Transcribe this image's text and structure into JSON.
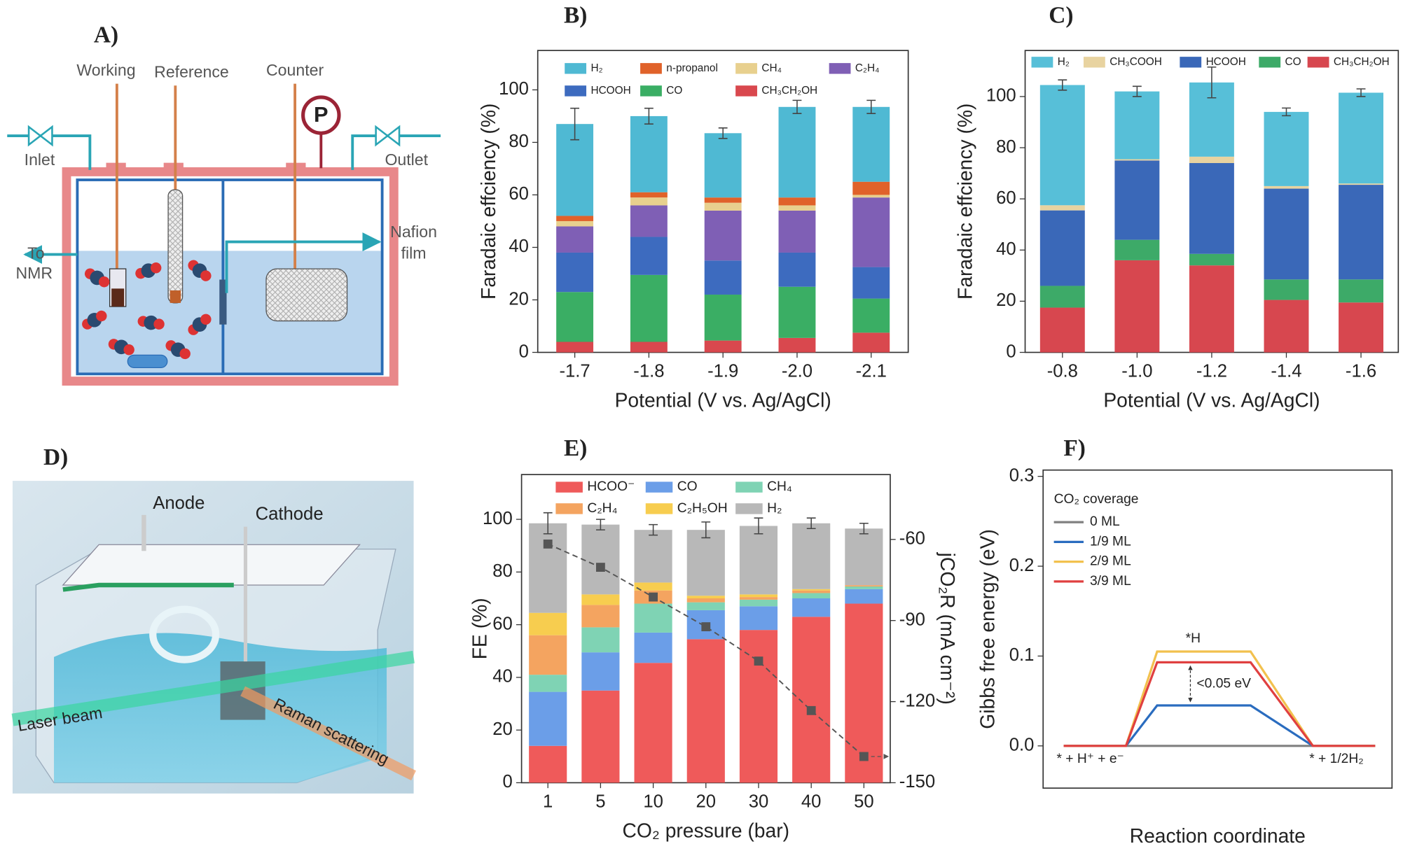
{
  "diagrams": {
    "A": {
      "panel_label": "A)",
      "working": "Working",
      "reference": "Reference",
      "counter": "Counter",
      "pressure": "P",
      "inlet": "Inlet",
      "outlet": "Outlet",
      "to_nmr": [
        "To",
        "NMR"
      ],
      "nafion": [
        "Nafion",
        "film"
      ]
    },
    "D": {
      "panel_label": "D)",
      "anode": "Anode",
      "cathode": "Cathode",
      "laser": "Laser beam",
      "raman": "Raman scattering"
    }
  },
  "chart_data": [
    {
      "type": "bar",
      "stacked": true,
      "panel_label": "B)",
      "xlabel": "Potential (V vs. Ag/AgCl)",
      "ylabel": "Faradaic effciency (%)",
      "categories": [
        "-1.7",
        "-1.8",
        "-1.9",
        "-2.0",
        "-2.1"
      ],
      "ylim": [
        0,
        115
      ],
      "yticks": [
        0,
        20,
        40,
        60,
        80,
        100
      ],
      "series": [
        {
          "name": "CH₃CH₂OH",
          "color": "#d9484e",
          "values": [
            4,
            4,
            4.5,
            5.5,
            7.5
          ]
        },
        {
          "name": "CO",
          "color": "#3aae64",
          "values": [
            19,
            25.5,
            17.5,
            19.5,
            13
          ]
        },
        {
          "name": "HCOOH",
          "color": "#3d6bbf",
          "values": [
            15,
            14.5,
            13,
            13,
            12
          ]
        },
        {
          "name": "C₂H₄",
          "color": "#7f5fb5",
          "values": [
            10,
            12,
            19,
            16,
            26.5
          ]
        },
        {
          "name": "CH₄",
          "color": "#e8d08e",
          "values": [
            2,
            3,
            3,
            2,
            1
          ]
        },
        {
          "name": "n-propanol",
          "color": "#e0622a",
          "values": [
            2,
            2,
            2,
            3,
            5
          ]
        },
        {
          "name": "H₂",
          "color": "#4fb9d3",
          "values": [
            35,
            29,
            24.5,
            34.5,
            28.5
          ],
          "errors": [
            6,
            3,
            2,
            2.5,
            2.5
          ]
        }
      ]
    },
    {
      "type": "bar",
      "stacked": true,
      "panel_label": "C)",
      "xlabel": "Potential (V vs. Ag/AgCl)",
      "ylabel": "Faradaic effciency (%)",
      "categories": [
        "-0.8",
        "-1.0",
        "-1.2",
        "-1.4",
        "-1.6"
      ],
      "ylim": [
        0,
        118
      ],
      "yticks": [
        0,
        20,
        40,
        60,
        80,
        100
      ],
      "series": [
        {
          "name": "CH₃CH₂OH",
          "color": "#d7474f",
          "values": [
            17.5,
            36,
            34,
            20.5,
            19.5
          ]
        },
        {
          "name": "CO",
          "color": "#3daa68",
          "values": [
            8.5,
            8,
            4.5,
            8,
            9
          ]
        },
        {
          "name": "HCOOH",
          "color": "#3a68b8",
          "values": [
            29.5,
            31,
            35.5,
            35.5,
            37
          ]
        },
        {
          "name": "CH₃COOH",
          "color": "#e8d3a0",
          "values": [
            2,
            0.5,
            2.5,
            1,
            0.5
          ]
        },
        {
          "name": "H₂",
          "color": "#57bfd8",
          "values": [
            47,
            26.5,
            29,
            29,
            35.5
          ],
          "errors": [
            2,
            2,
            6,
            1.5,
            1.5
          ]
        }
      ]
    },
    {
      "type": "bar",
      "stacked": true,
      "panel_label": "E)",
      "xlabel": "CO₂ pressure (bar)",
      "ylabel": "FE (%)",
      "y2label": "jCO₂R (mA cm⁻²)",
      "categories": [
        "1",
        "5",
        "10",
        "20",
        "30",
        "40",
        "50"
      ],
      "ylim": [
        0,
        117
      ],
      "yticks": [
        0,
        20,
        40,
        60,
        80,
        100
      ],
      "y2lim": [
        -150,
        -36
      ],
      "y2ticks": [
        -60,
        -90,
        -120,
        -150
      ],
      "series": [
        {
          "name": "HCOO⁻",
          "color": "#ef5a5a",
          "values": [
            14,
            35,
            45.5,
            54.5,
            58,
            63,
            68
          ]
        },
        {
          "name": "CO",
          "color": "#6b9ee8",
          "values": [
            20.5,
            14.5,
            11.5,
            11,
            9,
            7,
            5.5
          ]
        },
        {
          "name": "CH₄",
          "color": "#7fd3b4",
          "values": [
            6.5,
            9.5,
            11,
            3,
            2.5,
            2,
            1
          ]
        },
        {
          "name": "C₂H₄",
          "color": "#f4a460",
          "values": [
            15,
            8.5,
            5,
            1.5,
            1,
            1,
            0.5
          ]
        },
        {
          "name": "C₂H₅OH",
          "color": "#f7cd4f",
          "values": [
            8.5,
            4,
            3,
            1,
            1,
            0.5,
            0
          ]
        },
        {
          "name": "H₂",
          "color": "#b8b8b8",
          "values": [
            34,
            26.5,
            20,
            25,
            26,
            25,
            21.5
          ],
          "errors": [
            4,
            2,
            2,
            3,
            3,
            2,
            2
          ]
        }
      ],
      "line": {
        "axis": "y2",
        "color": "#555555",
        "values": [
          -61.7,
          -70.3,
          -81.3,
          -92.3,
          -105,
          -123.3,
          -140.3
        ]
      }
    },
    {
      "type": "line",
      "panel_label": "F)",
      "xlabel": "Reaction coordinate",
      "ylabel": "Gibbs free energy (eV)",
      "legend_title": "CO₂ coverage",
      "x": [
        0,
        1,
        1.5,
        3,
        4,
        5
      ],
      "xlim": [
        -0.33,
        5.27
      ],
      "ylim": [
        -0.047,
        0.307
      ],
      "yticks": [
        {
          "value": 0,
          "label": "0.0"
        },
        0.1,
        0.2,
        0.3
      ],
      "series": [
        {
          "name": "0  ML",
          "color": "#808080",
          "values": [
            0,
            0,
            0,
            0,
            0,
            0
          ]
        },
        {
          "name": "1/9 ML",
          "color": "#2a6cbf",
          "values": [
            0,
            0,
            0.045,
            0.045,
            0,
            0
          ]
        },
        {
          "name": "2/9 ML",
          "color": "#f2c14e",
          "values": [
            0,
            0,
            0.105,
            0.105,
            0,
            0
          ]
        },
        {
          "name": "3/9 ML",
          "color": "#e04040",
          "values": [
            0,
            0,
            0.093,
            0.093,
            0,
            0
          ]
        }
      ],
      "annotations": [
        "*H",
        "<0.05 eV",
        "* + H⁺ + e⁻",
        "* + 1/2H₂"
      ]
    }
  ]
}
